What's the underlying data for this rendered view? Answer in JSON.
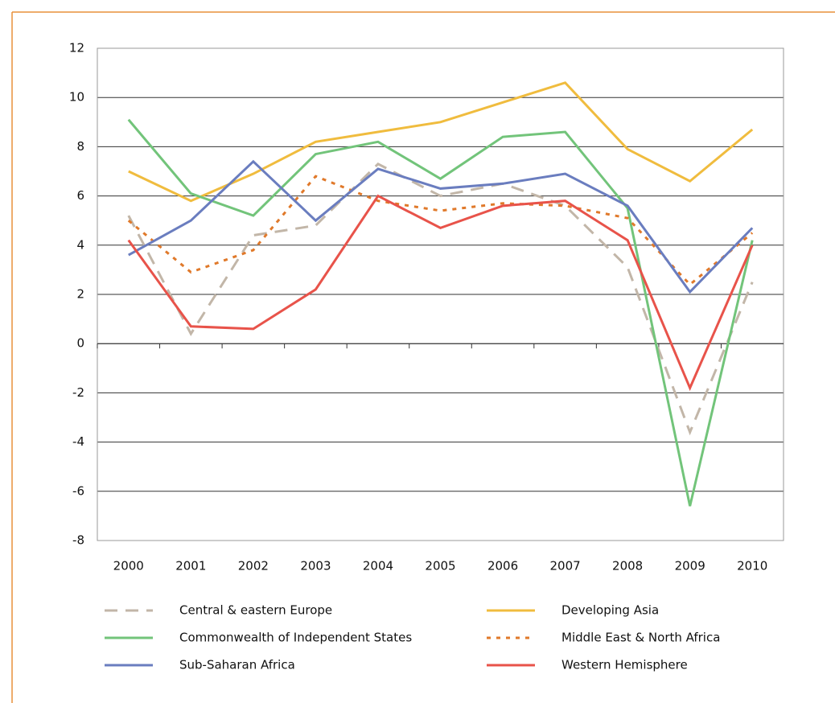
{
  "chart_data": {
    "type": "line",
    "categories": [
      "2000",
      "2001",
      "2002",
      "2003",
      "2004",
      "2005",
      "2006",
      "2007",
      "2008",
      "2009",
      "2010"
    ],
    "series": [
      {
        "name": "Central & eastern Europe",
        "color": "#c2b6a8",
        "style": "dashed",
        "values": [
          5.2,
          0.4,
          4.4,
          4.8,
          7.3,
          6.0,
          6.5,
          5.6,
          3.1,
          -3.6,
          2.5
        ]
      },
      {
        "name": "Developing Asia",
        "color": "#f0bc3e",
        "style": "solid",
        "values": [
          7.0,
          5.8,
          6.9,
          8.2,
          8.6,
          9.0,
          9.8,
          10.6,
          7.9,
          6.6,
          8.7
        ]
      },
      {
        "name": "Commonwealth of Independent States",
        "color": "#72c47a",
        "style": "solid",
        "values": [
          9.1,
          6.1,
          5.2,
          7.7,
          8.2,
          6.7,
          8.4,
          8.6,
          5.5,
          -6.6,
          4.2
        ]
      },
      {
        "name": "Middle East & North Africa",
        "color": "#e0792a",
        "style": "dotted",
        "values": [
          5.0,
          2.9,
          3.8,
          6.8,
          5.8,
          5.4,
          5.7,
          5.6,
          5.1,
          2.4,
          4.5
        ]
      },
      {
        "name": "Sub-Saharan Africa",
        "color": "#6a7dbf",
        "style": "solid",
        "values": [
          3.6,
          5.0,
          7.4,
          5.0,
          7.1,
          6.3,
          6.5,
          6.9,
          5.6,
          2.1,
          4.7
        ]
      },
      {
        "name": "Western Hemisphere",
        "color": "#e8534a",
        "style": "solid",
        "values": [
          4.2,
          0.7,
          0.6,
          2.2,
          6.0,
          4.7,
          5.6,
          5.8,
          4.2,
          -1.8,
          4.0
        ]
      }
    ],
    "ylim": [
      -8,
      12
    ],
    "yticks": [
      -8,
      -6,
      -4,
      -2,
      0,
      2,
      4,
      6,
      8,
      10,
      12
    ],
    "grid": true
  }
}
